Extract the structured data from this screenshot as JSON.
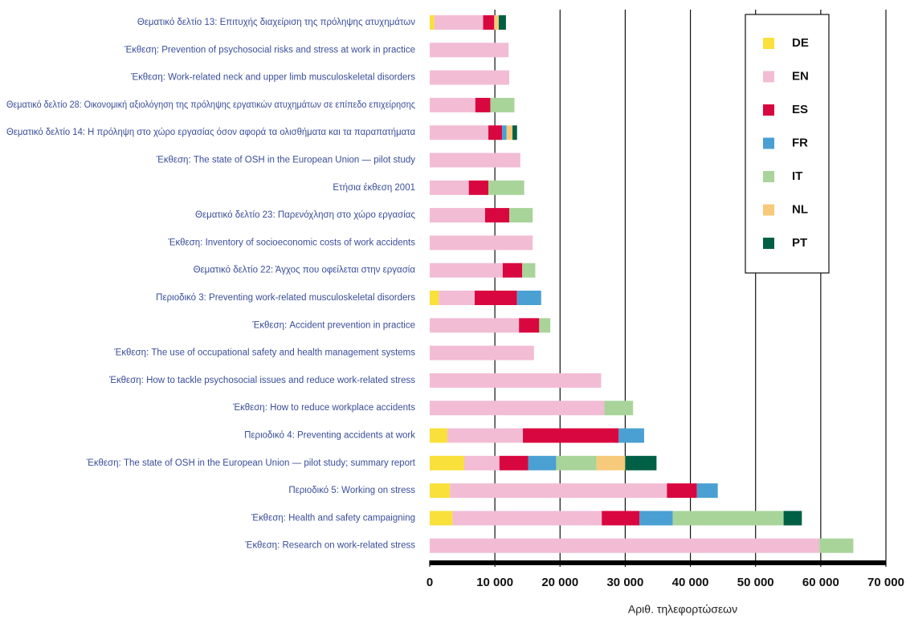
{
  "chart_data": {
    "type": "stacked-barh",
    "xlabel": "Αριθ. τηλεφορτώσεων",
    "categories": [
      "Θεματικό δελτίο 13: Επιτυχής διαχείριση της πρόληψης ατυχημάτων",
      "Έκθεση: Prevention of psychosocial risks and stress at work in practice",
      "Έκθεση: Work-related neck and upper limb musculoskeletal disorders",
      "Θεματικό δελτίο 28: Οικονομική αξιολόγηση της πρόληψης εργατικών ατυχημάτων σε επίπεδο επιχείρησης",
      "Θεματικό δελτίο 14: Η πρόληψη στο χώρο εργασίας όσον αφορά τα ολισθήματα και τα παραπατήματα",
      "Έκθεση: The state of OSH in the European Union — pilot study",
      "Ετήσια έκθεση 2001",
      "Θεματικό δελτίο 23: Παρενόχληση στο χώρο εργασίας",
      "Έκθεση: Inventory of socioeconomic costs of work accidents",
      "Θεματικό δελτίο 22: Άγχος που οφείλεται στην εργασία",
      "Περιοδικό 3: Preventing work-related musculoskeletal disorders",
      "Έκθεση: Accident prevention in practice",
      "Έκθεση: The use of occupational safety and health management systems",
      "Έκθεση: How to tackle psychosocial issues and reduce work-related stress",
      "Έκθεση: How to reduce workplace accidents",
      "Περιοδικό 4: Preventing accidents at work",
      "Έκθεση: The state of OSH in the European Union — pilot study; summary report",
      "Περιοδικό 5: Working on stress",
      "Έκθεση: Health and safety campaigning",
      "Έκθεση: Research on work-related stress"
    ],
    "series": [
      {
        "name": "DE",
        "color": "#f9e03a",
        "values": [
          700,
          null,
          null,
          null,
          null,
          null,
          null,
          null,
          null,
          null,
          1400,
          null,
          null,
          null,
          null,
          2700,
          5300,
          3100,
          3500,
          null
        ]
      },
      {
        "name": "EN",
        "color": "#f2bcd4",
        "values": [
          7500,
          12100,
          12200,
          7000,
          9000,
          13900,
          6000,
          8500,
          15800,
          11200,
          5500,
          13700,
          16000,
          26300,
          26800,
          11600,
          5400,
          33300,
          22900,
          59800
        ]
      },
      {
        "name": "ES",
        "color": "#d9073f",
        "values": [
          1700,
          null,
          null,
          2300,
          2100,
          null,
          3000,
          3700,
          null,
          3000,
          6500,
          3100,
          null,
          null,
          null,
          14700,
          4400,
          4600,
          5800,
          null
        ]
      },
      {
        "name": "FR",
        "color": "#4aa0d2",
        "values": [
          null,
          null,
          null,
          null,
          700,
          null,
          null,
          null,
          null,
          null,
          3700,
          null,
          null,
          null,
          null,
          3900,
          4300,
          3200,
          5100,
          null
        ]
      },
      {
        "name": "IT",
        "color": "#a8d49a",
        "values": [
          null,
          null,
          null,
          3700,
          null,
          null,
          5500,
          3600,
          null,
          2000,
          null,
          1700,
          null,
          null,
          4400,
          null,
          6200,
          null,
          17000,
          5200
        ]
      },
      {
        "name": "NL",
        "color": "#f7c97a",
        "values": [
          700,
          null,
          null,
          null,
          900,
          null,
          null,
          null,
          null,
          null,
          null,
          null,
          null,
          null,
          null,
          null,
          4400,
          null,
          null,
          null
        ]
      },
      {
        "name": "PT",
        "color": "#006045",
        "values": [
          1100,
          null,
          null,
          null,
          700,
          null,
          null,
          null,
          null,
          null,
          null,
          null,
          null,
          null,
          null,
          null,
          4800,
          null,
          2800,
          null
        ]
      }
    ],
    "xlim": [
      0,
      70000
    ],
    "xticks": [
      0,
      {
        "value": 10000,
        "label": "10 000"
      },
      {
        "value": 20000,
        "label": "20 000"
      },
      {
        "value": 30000,
        "label": "30 000"
      },
      {
        "value": 40000,
        "label": "40 000"
      },
      {
        "value": 50000,
        "label": "50 000"
      },
      {
        "value": 60000,
        "label": "60 000"
      },
      {
        "value": 70000,
        "label": "70 000"
      }
    ],
    "grid": true,
    "legend": "upper right"
  }
}
